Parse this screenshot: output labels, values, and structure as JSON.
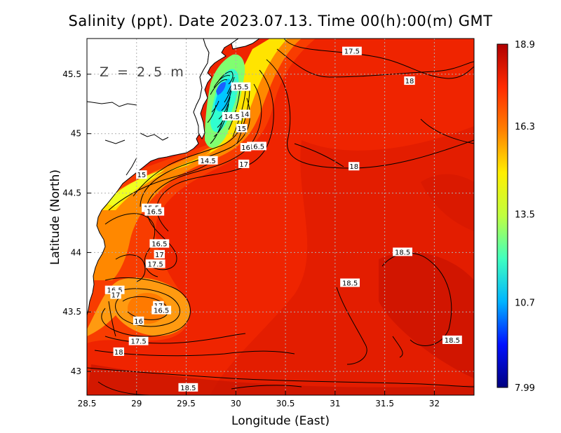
{
  "title": "Salinity (ppt). Date 2023.07.13. Time 00(h):00(m) GMT",
  "depth_annotation": "Z = 2.5 m",
  "x_axis": {
    "title": "Longitude (East)",
    "range": [
      28.5,
      32.4
    ],
    "ticks": [
      28.5,
      29,
      29.5,
      30,
      30.5,
      31,
      31.5,
      32
    ],
    "tick_labels": [
      "28.5",
      "29",
      "29.5",
      "30",
      "30.5",
      "31",
      "31.5",
      "32"
    ]
  },
  "y_axis": {
    "title": "Latitude (North)",
    "range": [
      42.8,
      45.8
    ],
    "ticks": [
      43,
      43.5,
      44,
      44.5,
      45,
      45.5
    ],
    "tick_labels": [
      "43",
      "43.5",
      "44",
      "44.5",
      "45",
      "45.5"
    ]
  },
  "colorbar": {
    "min": 7.99,
    "max": 18.9,
    "labels": [
      "18.9",
      "16.3",
      "13.5",
      "10.7",
      "7.99"
    ],
    "label_values": [
      18.9,
      16.3,
      13.5,
      10.7,
      7.99
    ],
    "colors": [
      "#00007f",
      "#0010ff",
      "#00b4ff",
      "#40ffbf",
      "#c0ff40",
      "#ffef00",
      "#ff8000",
      "#ff2a00",
      "#b00000"
    ]
  },
  "colors": {
    "land": "#ffffff",
    "sea_main": "#ef2400",
    "grid": "#b0b0b0"
  },
  "contour_labels": [
    {
      "text": "17.5",
      "lon": 31.17,
      "lat": 45.69
    },
    {
      "text": "18",
      "lon": 31.75,
      "lat": 45.44
    },
    {
      "text": "15.5",
      "lon": 30.05,
      "lat": 45.39
    },
    {
      "text": "14",
      "lon": 30.09,
      "lat": 45.16
    },
    {
      "text": "14.5",
      "lon": 29.96,
      "lat": 45.14
    },
    {
      "text": "15",
      "lon": 30.06,
      "lat": 45.04
    },
    {
      "text": "16.5",
      "lon": 30.21,
      "lat": 44.89
    },
    {
      "text": "16",
      "lon": 30.1,
      "lat": 44.88
    },
    {
      "text": "14.5",
      "lon": 29.72,
      "lat": 44.77
    },
    {
      "text": "17",
      "lon": 30.08,
      "lat": 44.74
    },
    {
      "text": "18",
      "lon": 31.19,
      "lat": 44.72
    },
    {
      "text": "15",
      "lon": 29.05,
      "lat": 44.65
    },
    {
      "text": "15.5",
      "lon": 29.15,
      "lat": 44.37
    },
    {
      "text": "16.5",
      "lon": 29.18,
      "lat": 44.34
    },
    {
      "text": "16.5",
      "lon": 29.23,
      "lat": 44.07
    },
    {
      "text": "17",
      "lon": 29.23,
      "lat": 43.98
    },
    {
      "text": "17.5",
      "lon": 29.19,
      "lat": 43.9
    },
    {
      "text": "18.5",
      "lon": 31.68,
      "lat": 44.0
    },
    {
      "text": "18.5",
      "lon": 31.15,
      "lat": 43.74
    },
    {
      "text": "16.5",
      "lon": 28.78,
      "lat": 43.68
    },
    {
      "text": "17",
      "lon": 28.79,
      "lat": 43.64
    },
    {
      "text": "17",
      "lon": 29.22,
      "lat": 43.55
    },
    {
      "text": "16.5",
      "lon": 29.25,
      "lat": 43.51
    },
    {
      "text": "16",
      "lon": 29.02,
      "lat": 43.42
    },
    {
      "text": "17.5",
      "lon": 29.02,
      "lat": 43.25
    },
    {
      "text": "18",
      "lon": 28.82,
      "lat": 43.16
    },
    {
      "text": "18.5",
      "lon": 32.18,
      "lat": 43.26
    },
    {
      "text": "18.5",
      "lon": 29.52,
      "lat": 42.86
    }
  ]
}
